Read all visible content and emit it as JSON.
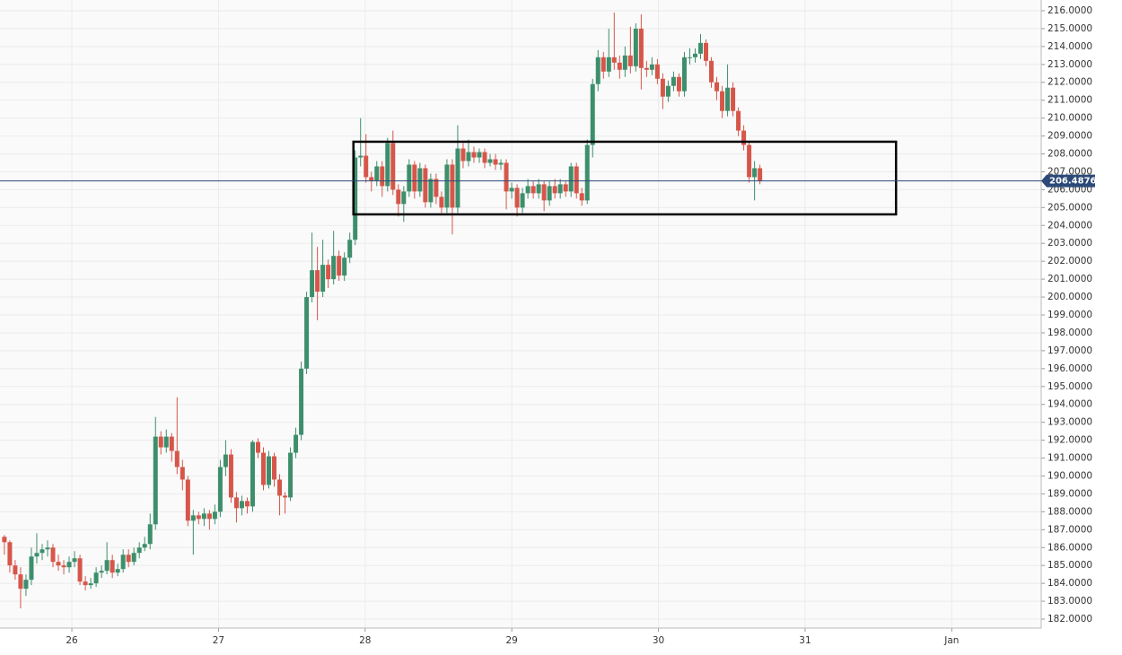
{
  "chart_data": {
    "type": "candlestick",
    "up_color": "#3d8f6c",
    "down_color": "#d6564a",
    "grid": true,
    "xlim": [
      25.51,
      32.61
    ],
    "ylim": [
      181.5,
      216.6
    ],
    "xticks": [
      26,
      27,
      28,
      29,
      30,
      31,
      {
        "value": 32,
        "label": "Jan"
      }
    ],
    "yticks": [
      {
        "value": 182,
        "label": "182.0000"
      },
      {
        "value": 183,
        "label": "183.0000"
      },
      {
        "value": 184,
        "label": "184.0000"
      },
      {
        "value": 185,
        "label": "185.0000"
      },
      {
        "value": 186,
        "label": "186.0000"
      },
      {
        "value": 187,
        "label": "187.0000"
      },
      {
        "value": 188,
        "label": "188.0000"
      },
      {
        "value": 189,
        "label": "189.0000"
      },
      {
        "value": 190,
        "label": "190.0000"
      },
      {
        "value": 191,
        "label": "191.0000"
      },
      {
        "value": 192,
        "label": "192.0000"
      },
      {
        "value": 193,
        "label": "193.0000"
      },
      {
        "value": 194,
        "label": "194.0000"
      },
      {
        "value": 195,
        "label": "195.0000"
      },
      {
        "value": 196,
        "label": "196.0000"
      },
      {
        "value": 197,
        "label": "197.0000"
      },
      {
        "value": 198,
        "label": "198.0000"
      },
      {
        "value": 199,
        "label": "199.0000"
      },
      {
        "value": 200,
        "label": "200.0000"
      },
      {
        "value": 201,
        "label": "201.0000"
      },
      {
        "value": 202,
        "label": "202.0000"
      },
      {
        "value": 203,
        "label": "203.0000"
      },
      {
        "value": 204,
        "label": "204.0000"
      },
      {
        "value": 205,
        "label": "205.0000"
      },
      {
        "value": 206,
        "label": "206.0000"
      },
      {
        "value": 207,
        "label": "207.0000"
      },
      {
        "value": 208,
        "label": "208.0000"
      },
      {
        "value": 209,
        "label": "209.0000"
      },
      {
        "value": 210,
        "label": "210.0000"
      },
      {
        "value": 211,
        "label": "211.0000"
      },
      {
        "value": 212,
        "label": "212.0000"
      },
      {
        "value": 213,
        "label": "213.0000"
      },
      {
        "value": 214,
        "label": "214.0000"
      },
      {
        "value": 215,
        "label": "215.0000"
      },
      {
        "value": 216,
        "label": "216.0000"
      }
    ],
    "last_price": 206.48768,
    "last_price_color": "#2c4a78",
    "annotation_box": {
      "x": [
        27.92,
        31.62
      ],
      "y": [
        204.62,
        208.68
      ]
    },
    "x": [
      25.54,
      25.5768,
      25.6136,
      25.6504,
      25.6872,
      25.724,
      25.7608,
      25.7976,
      25.8344,
      25.8712,
      25.908,
      25.9448,
      25.9816,
      26.0184,
      26.0552,
      26.092,
      26.1288,
      26.1656,
      26.2024,
      26.2392,
      26.276,
      26.3128,
      26.3496,
      26.3864,
      26.4232,
      26.46,
      26.4968,
      26.5336,
      26.5704,
      26.6072,
      26.644,
      26.6808,
      26.7176,
      26.7544,
      26.7912,
      26.828,
      26.8648,
      26.9016,
      26.9384,
      26.9752,
      27.012,
      27.0488,
      27.0856,
      27.1224,
      27.1592,
      27.196,
      27.2328,
      27.2696,
      27.3064,
      27.3432,
      27.38,
      27.4168,
      27.4536,
      27.4904,
      27.5272,
      27.564,
      27.6008,
      27.6376,
      27.6744,
      27.7112,
      27.748,
      27.7848,
      27.8216,
      27.8584,
      27.8952,
      27.932,
      27.9688,
      28.0056,
      28.0424,
      28.0792,
      28.116,
      28.1528,
      28.1896,
      28.2264,
      28.2632,
      28.3,
      28.3368,
      28.3736,
      28.4104,
      28.4472,
      28.484,
      28.5208,
      28.5576,
      28.5944,
      28.6312,
      28.668,
      28.7048,
      28.7416,
      28.7784,
      28.8152,
      28.852,
      28.8888,
      28.9256,
      28.9624,
      28.9992,
      29.036,
      29.0728,
      29.1096,
      29.1464,
      29.1832,
      29.22,
      29.2568,
      29.2936,
      29.3304,
      29.3672,
      29.404,
      29.4408,
      29.4776,
      29.5144,
      29.5512,
      29.588,
      29.6248,
      29.6616,
      29.6984,
      29.7352,
      29.772,
      29.8088,
      29.8456,
      29.8824,
      29.9192,
      29.956,
      29.9928,
      30.0296,
      30.0664,
      30.1032,
      30.14,
      30.1768,
      30.2136,
      30.2504,
      30.2872,
      30.324,
      30.3608,
      30.3976,
      30.4344,
      30.4712,
      30.508,
      30.5448,
      30.5816,
      30.6184,
      30.6552,
      30.692
    ],
    "open": [
      186.6,
      186.3,
      185.0,
      184.5,
      183.7,
      184.2,
      185.5,
      185.7,
      185.9,
      186.0,
      185.2,
      185.0,
      184.9,
      185.2,
      185.4,
      184.1,
      183.9,
      184.0,
      184.6,
      184.7,
      185.3,
      184.6,
      184.8,
      185.6,
      185.2,
      185.7,
      186.0,
      186.2,
      187.3,
      192.2,
      191.6,
      192.2,
      191.4,
      190.5,
      189.8,
      187.5,
      187.8,
      187.6,
      187.9,
      187.6,
      188.0,
      190.5,
      191.2,
      188.8,
      188.2,
      188.6,
      188.3,
      191.9,
      191.3,
      189.5,
      191.1,
      189.8,
      188.9,
      188.8,
      191.3,
      192.3,
      196.0,
      200.0,
      201.5,
      200.3,
      201.8,
      201.0,
      202.3,
      201.2,
      202.2,
      203.2,
      207.8,
      207.9,
      206.7,
      206.5,
      207.3,
      206.2,
      208.6,
      206.0,
      205.2,
      205.9,
      207.4,
      205.9,
      207.2,
      205.3,
      206.6,
      205.6,
      205.0,
      207.4,
      205.0,
      208.3,
      207.6,
      208.1,
      207.8,
      208.1,
      207.5,
      207.7,
      207.4,
      207.5,
      205.9,
      206.1,
      205.0,
      205.8,
      206.2,
      205.8,
      206.3,
      205.4,
      206.2,
      205.8,
      206.3,
      205.9,
      207.3,
      205.8,
      205.4,
      208.5,
      211.9,
      213.4,
      212.6,
      213.4,
      213.1,
      212.7,
      213.5,
      212.9,
      215.0,
      212.8,
      212.7,
      213.0,
      212.2,
      211.2,
      211.8,
      212.3,
      211.5,
      213.4,
      213.4,
      213.6,
      214.2,
      213.2,
      212.0,
      211.5,
      210.4,
      211.7,
      210.4,
      209.3,
      208.5,
      206.7,
      207.2
    ],
    "high": [
      186.7,
      186.4,
      185.3,
      184.9,
      184.5,
      186.0,
      186.8,
      186.2,
      186.4,
      186.2,
      185.6,
      185.3,
      185.5,
      185.8,
      185.6,
      184.4,
      184.3,
      184.9,
      185.0,
      186.3,
      185.6,
      185.1,
      185.9,
      185.9,
      186.0,
      186.3,
      186.6,
      187.9,
      193.3,
      192.5,
      192.6,
      192.4,
      194.4,
      190.9,
      190.0,
      188.1,
      188.0,
      188.2,
      188.1,
      188.4,
      190.9,
      192.0,
      191.5,
      189.1,
      188.9,
      188.8,
      192.0,
      192.1,
      191.6,
      191.4,
      191.3,
      190.1,
      189.1,
      191.6,
      192.7,
      196.4,
      200.3,
      203.6,
      202.8,
      203.2,
      202.1,
      203.7,
      202.6,
      202.5,
      203.6,
      208.2,
      210.0,
      209.1,
      207.0,
      207.6,
      207.6,
      208.9,
      209.3,
      206.3,
      206.2,
      207.7,
      207.6,
      207.5,
      207.4,
      206.9,
      206.9,
      205.9,
      207.7,
      207.7,
      209.6,
      208.6,
      208.8,
      208.4,
      208.3,
      208.3,
      208.0,
      208.0,
      207.7,
      207.7,
      206.4,
      206.3,
      206.1,
      206.6,
      206.5,
      206.6,
      206.5,
      206.5,
      206.6,
      206.6,
      206.5,
      207.5,
      207.5,
      206.1,
      208.8,
      212.2,
      213.8,
      213.7,
      215.0,
      215.9,
      213.5,
      214.0,
      215.1,
      215.3,
      215.8,
      213.2,
      213.4,
      213.3,
      212.5,
      212.1,
      212.6,
      212.5,
      213.7,
      213.9,
      213.9,
      214.7,
      214.4,
      213.4,
      212.3,
      211.8,
      213.0,
      212.0,
      210.6,
      209.6,
      208.7,
      207.6,
      207.4
    ],
    "low": [
      185.6,
      184.6,
      184.2,
      182.6,
      183.3,
      183.9,
      185.1,
      185.3,
      185.5,
      184.9,
      184.7,
      184.5,
      184.6,
      184.9,
      183.9,
      183.6,
      183.7,
      183.8,
      184.3,
      184.5,
      184.3,
      184.4,
      184.6,
      184.9,
      185.0,
      185.4,
      185.8,
      185.9,
      187.0,
      191.2,
      191.3,
      190.8,
      190.1,
      189.2,
      187.2,
      185.6,
      187.3,
      187.2,
      187.0,
      187.3,
      187.7,
      190.0,
      188.5,
      187.4,
      187.8,
      187.9,
      188.0,
      191.0,
      189.2,
      189.3,
      189.4,
      187.8,
      187.9,
      188.6,
      191.0,
      192.0,
      195.7,
      199.7,
      198.7,
      200.0,
      200.5,
      200.7,
      200.9,
      200.9,
      201.9,
      202.9,
      207.3,
      206.4,
      205.9,
      206.2,
      205.6,
      205.9,
      205.7,
      204.5,
      204.2,
      205.6,
      205.5,
      205.6,
      205.0,
      205.0,
      205.2,
      204.7,
      204.7,
      203.5,
      204.7,
      207.2,
      207.3,
      207.5,
      207.5,
      207.2,
      207.3,
      207.1,
      207.1,
      204.9,
      205.5,
      204.5,
      204.7,
      205.5,
      205.5,
      205.5,
      204.8,
      205.1,
      205.5,
      205.5,
      205.6,
      205.6,
      205.5,
      205.1,
      205.2,
      207.8,
      211.5,
      212.2,
      212.3,
      212.7,
      212.2,
      212.3,
      212.5,
      212.6,
      211.6,
      212.3,
      212.4,
      211.9,
      210.5,
      210.9,
      211.5,
      211.2,
      211.2,
      213.0,
      213.1,
      213.3,
      212.9,
      211.7,
      211.0,
      210.0,
      210.1,
      210.1,
      209.0,
      208.2,
      206.4,
      205.4,
      206.3
    ],
    "close": [
      186.3,
      185.0,
      184.5,
      183.7,
      184.2,
      185.5,
      185.7,
      185.9,
      186.0,
      185.2,
      185.0,
      184.9,
      185.2,
      185.4,
      184.1,
      183.9,
      184.0,
      184.6,
      184.7,
      185.3,
      184.6,
      184.8,
      185.6,
      185.2,
      185.7,
      186.0,
      186.2,
      187.3,
      192.2,
      191.6,
      192.2,
      191.4,
      190.5,
      189.8,
      187.5,
      187.8,
      187.6,
      187.9,
      187.6,
      188.0,
      190.5,
      191.2,
      188.8,
      188.2,
      188.6,
      188.3,
      191.9,
      191.3,
      189.5,
      191.1,
      189.8,
      188.9,
      188.8,
      191.3,
      192.3,
      196.0,
      200.0,
      201.5,
      200.3,
      201.8,
      201.0,
      202.3,
      201.2,
      202.2,
      203.2,
      207.8,
      207.9,
      206.7,
      206.5,
      207.3,
      206.2,
      208.6,
      206.0,
      205.2,
      205.9,
      207.4,
      205.9,
      207.2,
      205.3,
      206.6,
      205.6,
      205.0,
      207.4,
      205.0,
      208.3,
      207.6,
      208.1,
      207.8,
      208.1,
      207.5,
      207.7,
      207.4,
      207.5,
      205.9,
      206.1,
      205.0,
      205.8,
      206.2,
      205.8,
      206.3,
      205.4,
      206.2,
      205.8,
      206.3,
      205.9,
      207.3,
      205.8,
      205.4,
      208.5,
      211.9,
      213.4,
      212.6,
      213.4,
      213.1,
      212.7,
      213.5,
      212.9,
      215.0,
      212.8,
      212.7,
      213.0,
      212.2,
      211.2,
      211.8,
      212.3,
      211.5,
      213.4,
      213.4,
      213.6,
      214.2,
      213.2,
      212.0,
      211.5,
      210.4,
      211.7,
      210.4,
      209.3,
      208.5,
      206.7,
      207.2,
      206.5
    ]
  }
}
